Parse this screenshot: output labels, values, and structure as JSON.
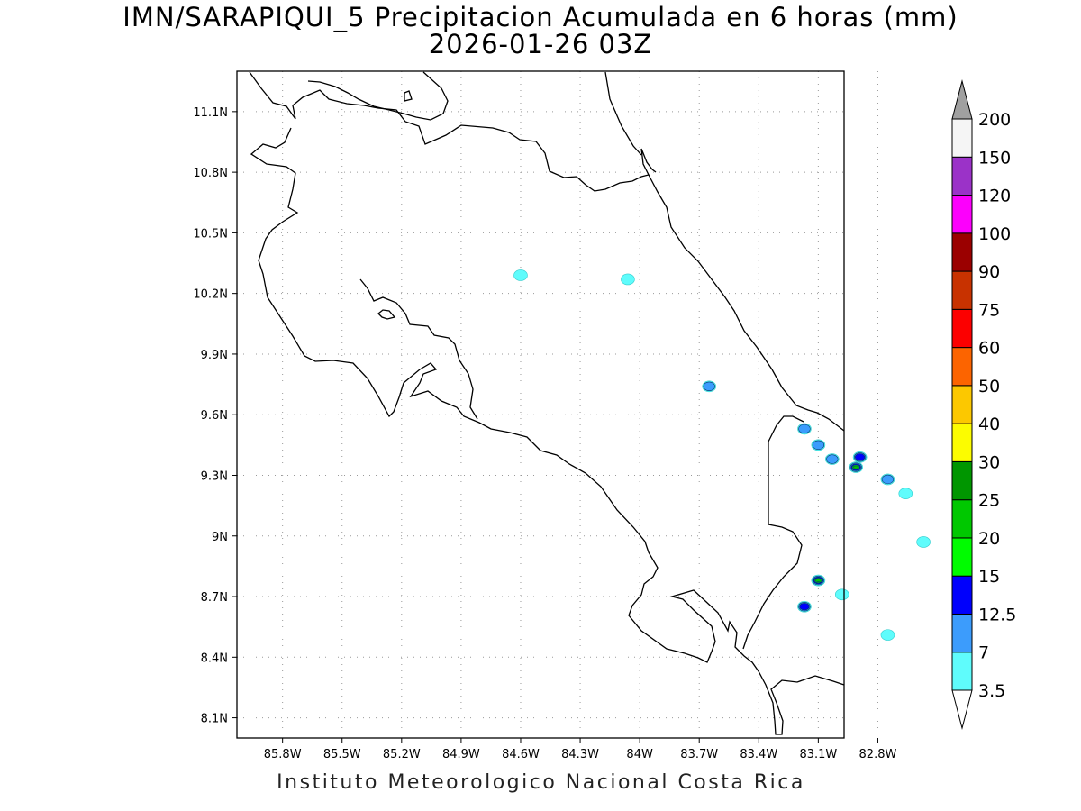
{
  "title": {
    "line1": "IMN/SARAPIQUI_5 Precipitacion Acumulada en 6 horas (mm)",
    "line2": "2026-01-26 03Z"
  },
  "footer": "Instituto Meteorologico Nacional Costa Rica",
  "map": {
    "lon_range": [
      -86.03,
      -82.97
    ],
    "lat_range": [
      8.0,
      11.3
    ],
    "lon_ticks": [
      {
        "value": -85.8,
        "label": "85.8W"
      },
      {
        "value": -85.5,
        "label": "85.5W"
      },
      {
        "value": -85.2,
        "label": "85.2W"
      },
      {
        "value": -84.9,
        "label": "84.9W"
      },
      {
        "value": -84.6,
        "label": "84.6W"
      },
      {
        "value": -84.3,
        "label": "84.3W"
      },
      {
        "value": -84.0,
        "label": "84W"
      },
      {
        "value": -83.7,
        "label": "83.7W"
      },
      {
        "value": -83.4,
        "label": "83.4W"
      },
      {
        "value": -83.1,
        "label": "83.1W"
      },
      {
        "value": -82.8,
        "label": "82.8W"
      }
    ],
    "lat_ticks": [
      {
        "value": 11.1,
        "label": "11.1N"
      },
      {
        "value": 10.8,
        "label": "10.8N"
      },
      {
        "value": 10.5,
        "label": "10.5N"
      },
      {
        "value": 10.2,
        "label": "10.2N"
      },
      {
        "value": 9.9,
        "label": "9.9N"
      },
      {
        "value": 9.6,
        "label": "9.6N"
      },
      {
        "value": 9.3,
        "label": "9.3N"
      },
      {
        "value": 9.0,
        "label": "9N"
      },
      {
        "value": 8.7,
        "label": "8.7N"
      },
      {
        "value": 8.4,
        "label": "8.4N"
      },
      {
        "value": 8.1,
        "label": "8.1N"
      }
    ],
    "grid": true,
    "precip_cells": [
      {
        "lon": -84.6,
        "lat": 10.29,
        "level": 0
      },
      {
        "lon": -84.06,
        "lat": 10.27,
        "level": 0
      },
      {
        "lon": -83.65,
        "lat": 9.74,
        "level": 1
      },
      {
        "lon": -83.17,
        "lat": 9.53,
        "level": 1
      },
      {
        "lon": -83.1,
        "lat": 9.45,
        "level": 1
      },
      {
        "lon": -83.03,
        "lat": 9.38,
        "level": 1
      },
      {
        "lon": -82.89,
        "lat": 9.39,
        "level": 2
      },
      {
        "lon": -82.91,
        "lat": 9.34,
        "level": 5
      },
      {
        "lon": -82.75,
        "lat": 9.28,
        "level": 1
      },
      {
        "lon": -82.66,
        "lat": 9.21,
        "level": 0
      },
      {
        "lon": -82.57,
        "lat": 8.97,
        "level": 0
      },
      {
        "lon": -83.1,
        "lat": 8.78,
        "level": 5
      },
      {
        "lon": -82.98,
        "lat": 8.71,
        "level": 0
      },
      {
        "lon": -83.17,
        "lat": 8.65,
        "level": 2
      },
      {
        "lon": -82.75,
        "lat": 8.51,
        "level": 0
      }
    ]
  },
  "colorbar": {
    "labels": [
      "3.5",
      "7",
      "12.5",
      "15",
      "20",
      "25",
      "30",
      "40",
      "50",
      "60",
      "75",
      "90",
      "100",
      "120",
      "150",
      "200"
    ],
    "colors": [
      "#5ffcfc",
      "#3c9cfc",
      "#0000fc",
      "#00fc00",
      "#00c800",
      "#009600",
      "#fcfc00",
      "#fcc800",
      "#fc6400",
      "#fc0000",
      "#c83200",
      "#9b0000",
      "#fc00fc",
      "#9b32c8",
      "#f5f5f5",
      "#a0a0a0"
    ]
  }
}
